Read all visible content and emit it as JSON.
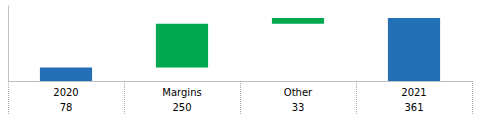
{
  "chart_data": {
    "type": "waterfall",
    "categories": [
      "2020",
      "Margins",
      "Other",
      "2021"
    ],
    "values": [
      78,
      250,
      33,
      361
    ],
    "colors": [
      "#2370B7",
      "#00A94F",
      "#00A94F",
      "#2370B7"
    ],
    "ylim": [
      0,
      430
    ],
    "grid": false,
    "tick_labels": false,
    "data_labels": true
  }
}
